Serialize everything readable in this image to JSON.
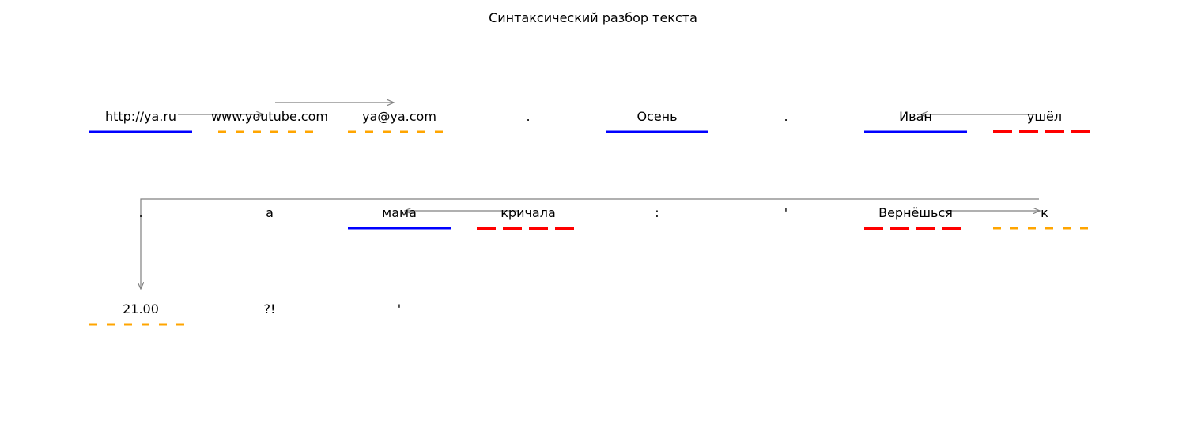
{
  "title": "Синтаксический разбор текста",
  "colors": {
    "subject": "#0000ff",
    "predicate": "#ff0000",
    "circumstance": "#ffa500",
    "link": "#808080"
  },
  "rows": [
    {
      "words": [
        {
          "text": "http://ya.ru",
          "role": "subject"
        },
        {
          "text": "www.youtube.com",
          "role": "circumstance"
        },
        {
          "text": "ya@ya.com",
          "role": "circumstance"
        },
        {
          "text": ".",
          "role": ""
        },
        {
          "text": "Осень",
          "role": "subject"
        },
        {
          "text": ".",
          "role": ""
        },
        {
          "text": "Иван",
          "role": "subject"
        },
        {
          "text": "ушёл",
          "role": "predicate"
        }
      ]
    },
    {
      "words": [
        {
          "text": ".",
          "role": ""
        },
        {
          "text": "а",
          "role": ""
        },
        {
          "text": "мама",
          "role": "subject"
        },
        {
          "text": "кричала",
          "role": "predicate"
        },
        {
          "text": ":",
          "role": ""
        },
        {
          "text": "'",
          "role": ""
        },
        {
          "text": "Вернёшься",
          "role": "predicate"
        },
        {
          "text": "к",
          "role": "circumstance"
        }
      ]
    },
    {
      "words": [
        {
          "text": "21.00",
          "role": "circumstance"
        },
        {
          "text": "?!",
          "role": ""
        },
        {
          "text": "'",
          "role": ""
        }
      ]
    }
  ],
  "links": [
    {
      "from": "http://ya.ru",
      "to": "www.youtube.com"
    },
    {
      "from": "www.youtube.com",
      "to": "ya@ya.com"
    },
    {
      "from": "ушёл",
      "to": "Иван"
    },
    {
      "from": "кричала",
      "to": "мама"
    },
    {
      "from": "Вернёшься",
      "to": "к"
    },
    {
      "from": "к",
      "to": "21.00"
    }
  ]
}
